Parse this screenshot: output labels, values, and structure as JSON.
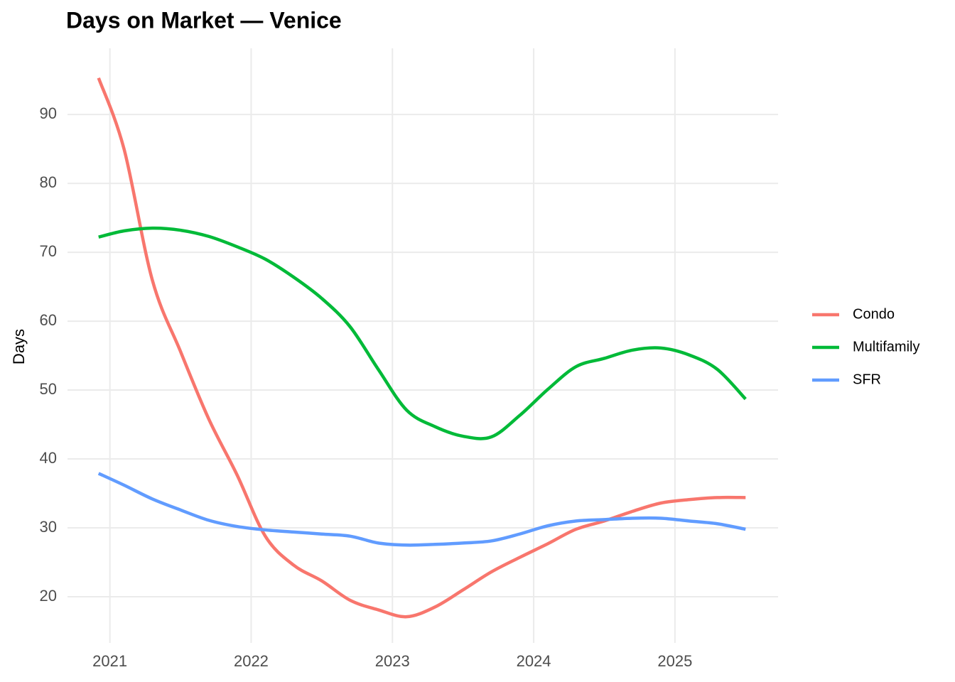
{
  "chart_data": {
    "type": "line",
    "title": "Days on Market — Venice",
    "y_label": "Days",
    "x": [
      2020.92,
      2021.1,
      2021.3,
      2021.5,
      2021.7,
      2021.9,
      2022.1,
      2022.3,
      2022.5,
      2022.7,
      2022.9,
      2023.1,
      2023.3,
      2023.5,
      2023.7,
      2023.9,
      2024.1,
      2024.3,
      2024.5,
      2024.7,
      2024.9,
      2025.1,
      2025.3,
      2025.5
    ],
    "series": [
      {
        "name": "Condo",
        "color": "#F8766D",
        "values": [
          95.3,
          85,
          66,
          55.6,
          45.8,
          37.7,
          28.8,
          24.6,
          22.3,
          19.5,
          18.1,
          17.1,
          18.5,
          21,
          23.6,
          25.7,
          27.7,
          29.8,
          31,
          32.4,
          33.6,
          34.1,
          34.4,
          34.4
        ]
      },
      {
        "name": "Multifamily",
        "color": "#00BA38",
        "values": [
          72.2,
          73.1,
          73.5,
          73.2,
          72.3,
          70.8,
          69,
          66.4,
          63.3,
          59.2,
          53,
          47.1,
          44.7,
          43.3,
          43.2,
          46.3,
          50.1,
          53.4,
          54.6,
          55.8,
          56.1,
          55.1,
          53,
          48.7
        ]
      },
      {
        "name": "SFR",
        "color": "#619CFF",
        "values": [
          37.9,
          36.2,
          34.2,
          32.6,
          31.1,
          30.2,
          29.7,
          29.4,
          29.1,
          28.8,
          27.8,
          27.5,
          27.6,
          27.8,
          28.1,
          29.1,
          30.3,
          31,
          31.2,
          31.4,
          31.4,
          31,
          30.6,
          29.8
        ]
      }
    ],
    "xlim": [
      2020.7,
      2025.73
    ],
    "xticks": [
      2021,
      2022,
      2023,
      2024,
      2025
    ],
    "ylim": [
      13.3,
      99.6
    ],
    "yticks": [
      20,
      30,
      40,
      50,
      60,
      70,
      80,
      90
    ],
    "grid": true,
    "legend": "right"
  }
}
